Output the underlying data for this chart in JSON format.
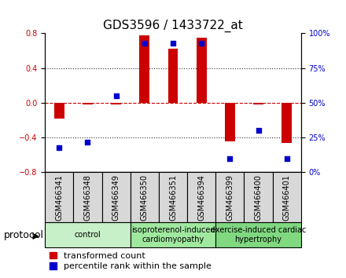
{
  "title": "GDS3596 / 1433722_at",
  "samples": [
    "GSM466341",
    "GSM466348",
    "GSM466349",
    "GSM466350",
    "GSM466351",
    "GSM466394",
    "GSM466399",
    "GSM466400",
    "GSM466401"
  ],
  "transformed_counts": [
    -0.18,
    -0.02,
    -0.02,
    0.78,
    0.62,
    0.75,
    -0.44,
    -0.02,
    -0.46
  ],
  "percentile_ranks": [
    18,
    22,
    55,
    93,
    93,
    93,
    10,
    30,
    10
  ],
  "groups": [
    {
      "label": "control",
      "start": 0,
      "end": 3,
      "color": "#c8f0c8"
    },
    {
      "label": "isoproterenol-induced\ncardiomyopathy",
      "start": 3,
      "end": 6,
      "color": "#a0e8a0"
    },
    {
      "label": "exercise-induced cardiac\nhypertrophy",
      "start": 6,
      "end": 9,
      "color": "#80d880"
    }
  ],
  "bar_color": "#cc0000",
  "dot_color": "#0000cc",
  "left_ylim": [
    -0.8,
    0.8
  ],
  "right_ylim": [
    0,
    100
  ],
  "left_yticks": [
    -0.8,
    -0.4,
    0.0,
    0.4,
    0.8
  ],
  "right_yticks": [
    0,
    25,
    50,
    75,
    100
  ],
  "right_yticklabels": [
    "0%",
    "25%",
    "50%",
    "75%",
    "100%"
  ],
  "zero_line_color": "#cc0000",
  "dotted_line_color": "#333333",
  "dotted_lines": [
    -0.4,
    0.4
  ],
  "bg_color": "#ffffff",
  "plot_bg_color": "#ffffff",
  "grid_color": "#cccccc",
  "title_fontsize": 11,
  "tick_fontsize": 7,
  "label_fontsize": 8,
  "group_label_fontsize": 7,
  "legend_fontsize": 8,
  "protocol_fontsize": 9,
  "bar_width": 0.35
}
